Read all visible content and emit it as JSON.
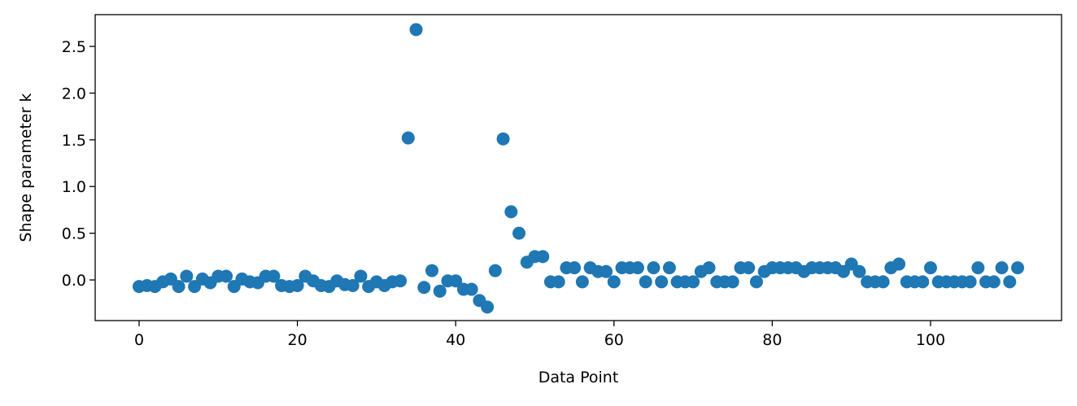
{
  "chart_data": {
    "type": "scatter",
    "xlabel": "Data Point",
    "ylabel": "Shape parameter k",
    "color": "#1f77b4",
    "x": [
      0,
      1,
      2,
      3,
      4,
      5,
      6,
      7,
      8,
      9,
      10,
      11,
      12,
      13,
      14,
      15,
      16,
      17,
      18,
      19,
      20,
      21,
      22,
      23,
      24,
      25,
      26,
      27,
      28,
      29,
      30,
      31,
      32,
      33,
      34,
      35,
      36,
      37,
      38,
      39,
      40,
      41,
      42,
      43,
      44,
      45,
      46,
      47,
      48,
      49,
      50,
      51,
      52,
      53,
      54,
      55,
      56,
      57,
      58,
      59,
      60,
      61,
      62,
      63,
      64,
      65,
      66,
      67,
      68,
      69,
      70,
      71,
      72,
      73,
      74,
      75,
      76,
      77,
      78,
      79,
      80,
      81,
      82,
      83,
      84,
      85,
      86,
      87,
      88,
      89,
      90,
      91,
      92,
      93,
      94,
      95,
      96,
      97,
      98,
      99,
      100,
      101,
      102,
      103,
      104,
      105,
      106,
      107,
      108,
      109,
      110,
      111
    ],
    "values": [
      -0.07,
      -0.06,
      -0.07,
      -0.02,
      0.01,
      -0.07,
      0.04,
      -0.07,
      0.01,
      -0.03,
      0.04,
      0.04,
      -0.07,
      0.01,
      -0.02,
      -0.03,
      0.04,
      0.04,
      -0.06,
      -0.07,
      -0.06,
      0.04,
      -0.01,
      -0.06,
      -0.07,
      -0.01,
      -0.05,
      -0.06,
      0.04,
      -0.07,
      -0.02,
      -0.06,
      -0.02,
      -0.01,
      1.52,
      2.68,
      -0.08,
      0.1,
      -0.12,
      -0.01,
      -0.01,
      -0.1,
      -0.1,
      -0.22,
      -0.29,
      0.1,
      1.51,
      0.73,
      0.5,
      0.19,
      0.25,
      0.25,
      -0.02,
      -0.02,
      0.13,
      0.13,
      -0.02,
      0.13,
      0.09,
      0.09,
      -0.02,
      0.13,
      0.13,
      0.13,
      -0.02,
      0.13,
      -0.02,
      0.13,
      -0.02,
      -0.02,
      -0.02,
      0.09,
      0.13,
      -0.02,
      -0.02,
      -0.02,
      0.13,
      0.13,
      -0.02,
      0.09,
      0.13,
      0.13,
      0.13,
      0.13,
      0.09,
      0.13,
      0.13,
      0.13,
      0.13,
      0.09,
      0.17,
      0.09,
      -0.02,
      -0.02,
      -0.02,
      0.13,
      0.17,
      -0.02,
      -0.02,
      -0.02,
      0.13,
      -0.02,
      -0.02,
      -0.02,
      -0.02,
      -0.02,
      0.13,
      -0.02,
      -0.02,
      0.13,
      -0.02,
      0.13
    ],
    "xlim": [
      -5.55,
      116.55
    ],
    "ylim": [
      -0.435,
      2.84
    ],
    "xticks": [
      0,
      20,
      40,
      60,
      80,
      100
    ],
    "yticks": [
      {
        "value": 0,
        "label": "0.0"
      },
      {
        "value": 0.5,
        "label": "0.5"
      },
      {
        "value": 1,
        "label": "1.0"
      },
      {
        "value": 1.5,
        "label": "1.5"
      },
      {
        "value": 2,
        "label": "2.0"
      },
      {
        "value": 2.5,
        "label": "2.5"
      }
    ]
  }
}
